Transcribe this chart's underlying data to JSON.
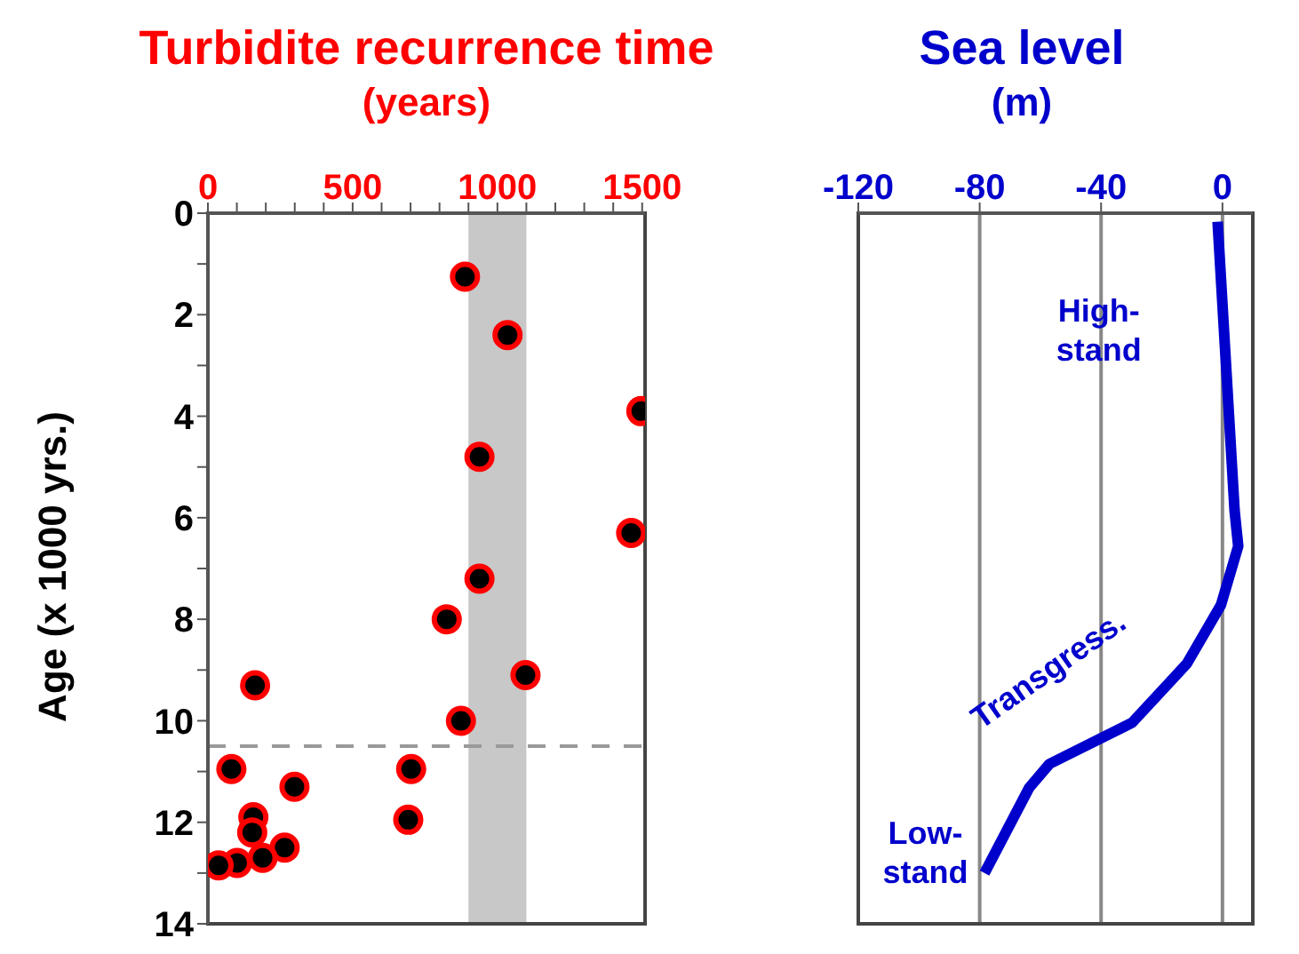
{
  "chart_data": [
    {
      "type": "scatter",
      "title": "Turbidite recurrence time",
      "subtitle": "(years)",
      "ylabel": "Age (x 1000 yrs.)",
      "x": [
        888,
        1035,
        1497,
        938,
        1462,
        938,
        825,
        1097,
        163,
        874,
        81,
        702,
        299,
        157,
        692,
        153,
        265,
        189,
        101,
        37
      ],
      "values": [
        1.25,
        2.4,
        3.9,
        4.8,
        6.3,
        7.2,
        8.0,
        9.1,
        9.3,
        10.0,
        10.95,
        10.95,
        11.3,
        11.9,
        11.95,
        12.2,
        12.5,
        12.7,
        12.8,
        12.85
      ],
      "color": "#ff0000",
      "marker": "circle",
      "xlim": [
        0,
        1510
      ],
      "xticks": [
        0,
        {
          "value": 100,
          "label": null
        },
        {
          "value": 200,
          "label": null
        },
        {
          "value": 300,
          "label": null
        },
        {
          "value": 400,
          "label": null
        },
        500,
        {
          "value": 600,
          "label": null
        },
        {
          "value": 700,
          "label": null
        },
        {
          "value": 800,
          "label": null
        },
        {
          "value": 900,
          "label": null
        },
        1000,
        {
          "value": 1100,
          "label": null
        },
        {
          "value": 1200,
          "label": null
        },
        {
          "value": 1300,
          "label": null
        },
        {
          "value": 1400,
          "label": null
        },
        1500
      ],
      "ylim": [
        14,
        0
      ],
      "yticks": [
        0,
        {
          "value": 1,
          "label": null
        },
        2,
        {
          "value": 3,
          "label": null
        },
        4,
        {
          "value": 5,
          "label": null
        },
        6,
        {
          "value": 7,
          "label": null
        },
        8,
        {
          "value": 9,
          "label": null
        },
        10,
        {
          "value": 11,
          "label": null
        },
        12,
        {
          "value": 13,
          "label": null
        },
        14
      ],
      "bands": [
        {
          "axis": "x",
          "from": 900,
          "to": 1100,
          "color": "#c8c8c8"
        }
      ],
      "ref_lines": [
        {
          "axis": "y",
          "value": 10.5,
          "color": "#999999",
          "line_style": "dashed"
        }
      ],
      "grid": false
    },
    {
      "type": "line",
      "title": "Sea level",
      "subtitle": "(m)",
      "x": [
        -1.6,
        4,
        5.2,
        -0.5,
        -11.8,
        -29.8,
        -57,
        -63.7,
        -78.4
      ],
      "values": [
        0.17,
        5.86,
        6.56,
        7.72,
        8.88,
        10.04,
        10.85,
        11.32,
        13.0
      ],
      "color": "#0000cc",
      "line_style": "solid",
      "xlim": [
        -120,
        10
      ],
      "xticks": [
        -120,
        -80,
        -40,
        0
      ],
      "ylim": [
        14,
        0
      ],
      "tick_labels": "x",
      "grid": "x",
      "annotations": [
        "High-\nstand",
        "Transgress.",
        "Low-\nstand"
      ]
    }
  ]
}
